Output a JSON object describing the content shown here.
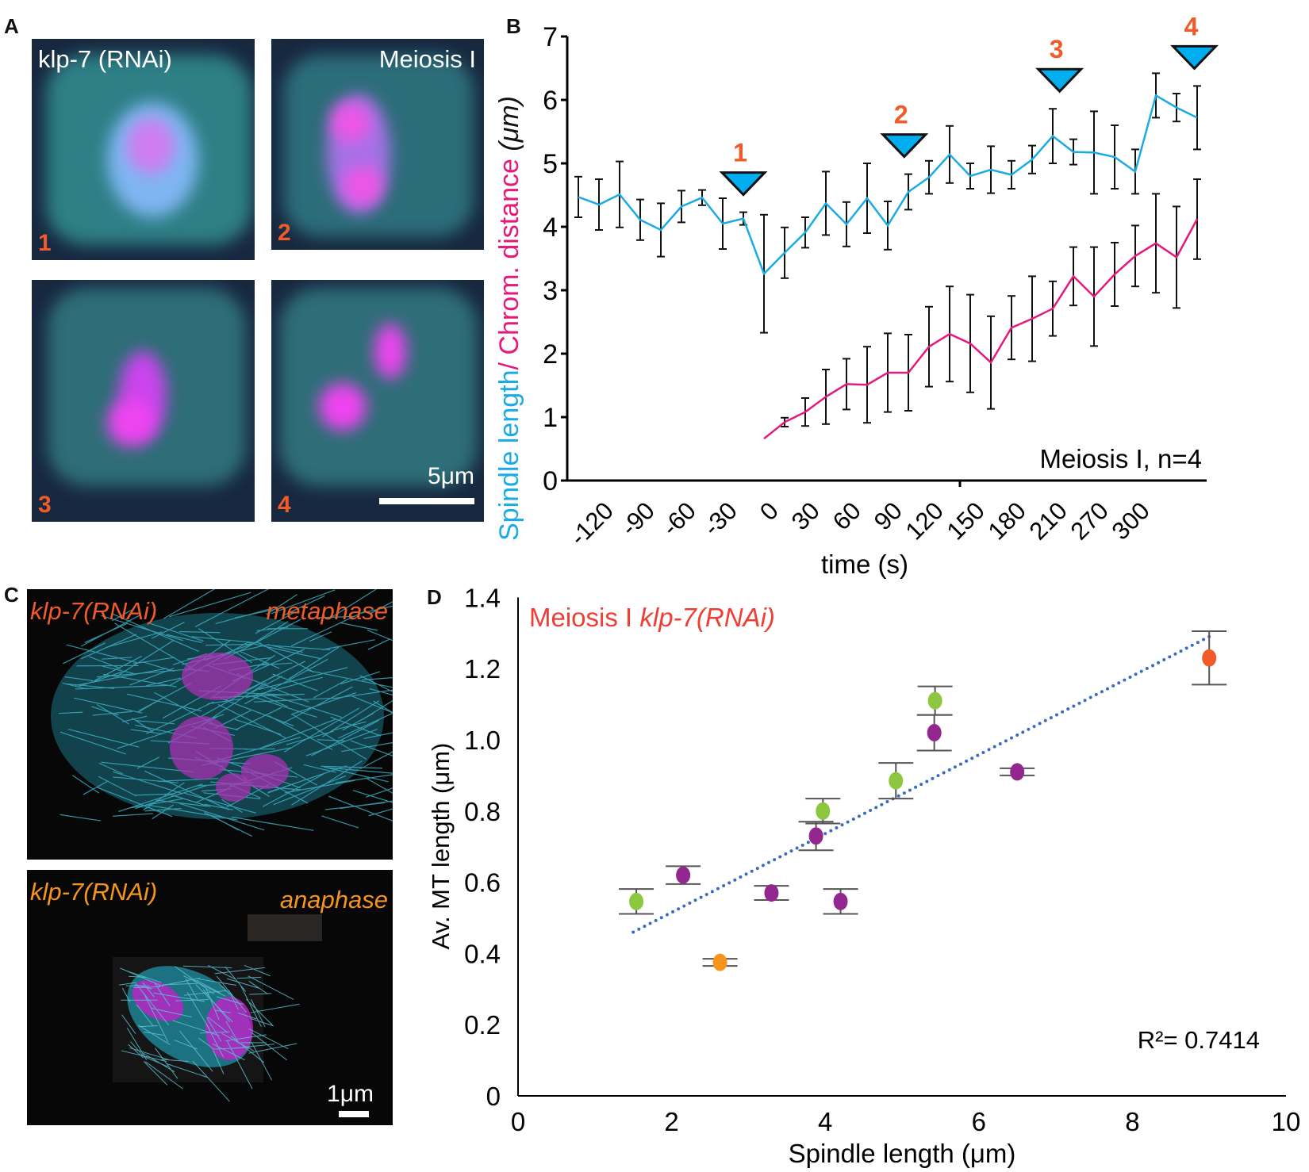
{
  "panel_labels": {
    "a": "A",
    "b": "B",
    "c": "C",
    "d": "D"
  },
  "panel_a": {
    "title_left": "klp-7 (RNAi)",
    "title_right": "Meiosis I",
    "tiles": [
      "1",
      "2",
      "3",
      "4"
    ],
    "scale_bar": "5μm"
  },
  "panel_c": {
    "top_left": "klp-7(RNAi)",
    "top_right": "metaphase",
    "bottom_left": "klp-7(RNAi)",
    "bottom_right": "anaphase",
    "scale_bar": "1μm"
  },
  "chart_data": [
    {
      "type": "line",
      "ylabel_parts": [
        "Spindle length",
        "/ Chrom. distance",
        " (μm)"
      ],
      "xlabel": "time (s)",
      "annotation": "Meiosis I, n=4",
      "ylim": [
        0,
        7
      ],
      "yticks": [
        "0",
        "1",
        "2",
        "3",
        "4",
        "5",
        "6",
        "7"
      ],
      "xtick_labels": [
        "-120",
        "-90",
        "-60",
        "-30",
        "0",
        "30",
        "60",
        "90",
        "120",
        "150",
        "180",
        "210",
        "270",
        "300"
      ],
      "x": [
        -135,
        -120,
        -105,
        -90,
        -75,
        -60,
        -45,
        -30,
        -15,
        0,
        15,
        30,
        45,
        60,
        75,
        90,
        105,
        120,
        135,
        150,
        165,
        180,
        195,
        210,
        225,
        240,
        255,
        270,
        285,
        300,
        315
      ],
      "series": [
        {
          "color": "#1aabe4",
          "values": [
            4.47,
            4.35,
            4.51,
            4.11,
            3.95,
            4.32,
            4.46,
            4.05,
            4.13,
            3.26,
            3.59,
            3.91,
            4.37,
            4.04,
            4.45,
            4.02,
            4.55,
            4.78,
            5.14,
            4.8,
            4.9,
            4.82,
            5.06,
            5.43,
            5.18,
            5.17,
            5.1,
            4.87,
            6.07,
            5.88,
            5.72
          ],
          "errors": [
            0.32,
            0.4,
            0.52,
            0.32,
            0.42,
            0.25,
            0.12,
            0.4,
            0.1,
            0.93,
            0.4,
            0.24,
            0.5,
            0.35,
            0.55,
            0.38,
            0.28,
            0.26,
            0.45,
            0.2,
            0.37,
            0.22,
            0.22,
            0.43,
            0.2,
            0.65,
            0.5,
            0.35,
            0.35,
            0.22,
            0.5
          ]
        },
        {
          "color": "#e6197a",
          "values": [
            null,
            null,
            null,
            null,
            null,
            null,
            null,
            null,
            null,
            0.66,
            0.92,
            1.08,
            1.32,
            1.52,
            1.51,
            1.7,
            1.7,
            2.11,
            2.31,
            2.16,
            1.86,
            2.41,
            2.55,
            2.71,
            3.22,
            2.9,
            3.25,
            3.54,
            3.74,
            3.52,
            4.12
          ],
          "errors": [
            null,
            null,
            null,
            null,
            null,
            null,
            null,
            null,
            null,
            0,
            0.07,
            0.22,
            0.43,
            0.4,
            0.6,
            0.62,
            0.6,
            0.63,
            0.75,
            0.77,
            0.73,
            0.5,
            0.67,
            0.43,
            0.46,
            0.78,
            0.5,
            0.48,
            0.78,
            0.8,
            0.63
          ]
        }
      ],
      "markers": [
        {
          "label": "1",
          "time": -15
        },
        {
          "label": "2",
          "time": 102
        },
        {
          "label": "3",
          "time": 215
        },
        {
          "label": "4",
          "time": 313
        }
      ],
      "marker_fill": "#00aeef",
      "marker_label_color": "#f15a29"
    },
    {
      "type": "scatter",
      "title_parts": [
        "Meiosis I ",
        "klp-7(RNAi)"
      ],
      "title_color": "#ef3e36",
      "xlabel": "Spindle length (μm)",
      "ylabel": "Av. MT length (μm)",
      "xlim": [
        0,
        10
      ],
      "ylim": [
        0,
        1.4
      ],
      "xticks": [
        "0",
        "2",
        "4",
        "6",
        "8",
        "10"
      ],
      "yticks": [
        "0",
        "0.2",
        "0.4",
        "0.6",
        "0.8",
        "1.0",
        "1.2",
        "1.4"
      ],
      "points": [
        {
          "x": 1.54,
          "y": 0.546,
          "err": 0.035,
          "color": "#8dc63f"
        },
        {
          "x": 2.15,
          "y": 0.62,
          "err": 0.025,
          "color": "#92278f"
        },
        {
          "x": 2.63,
          "y": 0.375,
          "err": 0.01,
          "color": "#f7941d"
        },
        {
          "x": 3.3,
          "y": 0.57,
          "err": 0.02,
          "color": "#92278f"
        },
        {
          "x": 3.88,
          "y": 0.73,
          "err": 0.04,
          "color": "#92278f"
        },
        {
          "x": 3.97,
          "y": 0.8,
          "err": 0.035,
          "color": "#8dc63f"
        },
        {
          "x": 4.2,
          "y": 0.546,
          "err": 0.035,
          "color": "#92278f"
        },
        {
          "x": 4.92,
          "y": 0.885,
          "err": 0.05,
          "color": "#8dc63f"
        },
        {
          "x": 5.43,
          "y": 1.11,
          "err": 0.04,
          "color": "#8dc63f"
        },
        {
          "x": 5.42,
          "y": 1.02,
          "err": 0.05,
          "color": "#92278f"
        },
        {
          "x": 6.5,
          "y": 0.91,
          "err": 0.01,
          "color": "#92278f"
        },
        {
          "x": 9.0,
          "y": 1.23,
          "err": 0.075,
          "color": "#f15a29"
        }
      ],
      "trendline": {
        "x": [
          1.5,
          9.0
        ],
        "y": [
          0.46,
          1.29
        ],
        "color": "#3a6bc4",
        "style": "dotted"
      },
      "r2_label": "R²= 0.7414"
    }
  ]
}
